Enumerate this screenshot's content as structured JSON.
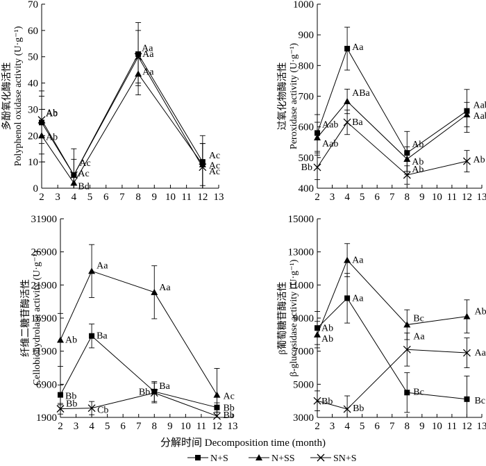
{
  "figure": {
    "x_label": "分解时间 Decomposition time (month)",
    "legend": [
      {
        "name": "N+S",
        "marker": "square"
      },
      {
        "name": "N+SS",
        "marker": "triangle"
      },
      {
        "name": "SN+S",
        "marker": "cross"
      }
    ]
  },
  "chart_data": [
    {
      "type": "line",
      "ylabel_cn": "多酚氧化酶活性",
      "ylabel_en": "Polyphenol oxidase activity (U·g⁻¹)",
      "x": [
        2,
        4,
        8,
        12
      ],
      "xlim": [
        2,
        13
      ],
      "ylim": [
        0,
        70
      ],
      "yticks": [
        0,
        10,
        20,
        30,
        40,
        50,
        60,
        70
      ],
      "series": [
        {
          "name": "N+S",
          "values": [
            25,
            5,
            51,
            10
          ],
          "err": [
            12,
            10,
            12,
            10
          ],
          "labels": [
            "Ab",
            "Ac",
            "Aa",
            "Ac"
          ]
        },
        {
          "name": "N+SS",
          "values": [
            20,
            2,
            43.5,
            9
          ],
          "err": [
            10,
            3,
            8,
            8
          ],
          "labels": [
            "Ab",
            "Bd",
            "Aa",
            "Ac"
          ]
        },
        {
          "name": "SN+S",
          "values": [
            26,
            5,
            50,
            8
          ],
          "err": [
            9,
            6,
            10,
            9
          ],
          "labels": [
            "Ab",
            "Ac",
            "Aa",
            "Ac"
          ]
        }
      ]
    },
    {
      "type": "line",
      "ylabel_cn": "过氧化物酶活性",
      "ylabel_en": "Peroxidase activity (U·g⁻¹)",
      "x": [
        2,
        4,
        8,
        12
      ],
      "xlim": [
        2,
        13
      ],
      "ylim": [
        400,
        1000
      ],
      "yticks": [
        400,
        500,
        600,
        700,
        800,
        900,
        1000
      ],
      "series": [
        {
          "name": "N+S",
          "values": [
            580,
            855,
            515,
            652
          ],
          "err": [
            60,
            70,
            70,
            70
          ],
          "labels": [
            "Aab",
            "Aa",
            "Ab",
            "Aab"
          ]
        },
        {
          "name": "N+SS",
          "values": [
            565,
            683,
            495,
            640
          ],
          "err": [
            50,
            40,
            40,
            40
          ],
          "labels": [
            "Aab",
            "ABa",
            "Ab",
            "Aab"
          ]
        },
        {
          "name": "SN+S",
          "values": [
            468,
            615,
            443,
            488
          ],
          "err": [
            40,
            40,
            30,
            35
          ],
          "labels": [
            "Bb",
            "Ba",
            "Ab",
            "Ab"
          ]
        }
      ]
    },
    {
      "type": "line",
      "ylabel_cn": "纤维二糖苷酶活性",
      "ylabel_en": "Cellobiohydrolase activity (U·g⁻¹)",
      "x": [
        2,
        4,
        8,
        12
      ],
      "xlim": [
        2,
        13
      ],
      "ylim": [
        1900,
        31900
      ],
      "yticks": [
        1900,
        6900,
        11900,
        16900,
        21900,
        26900,
        31900
      ],
      "series": [
        {
          "name": "N+S",
          "values": [
            5300,
            14200,
            5800,
            3400
          ],
          "err": [
            1500,
            1800,
            1500,
            700
          ],
          "labels": [
            "Bb",
            "Ba",
            "Ba",
            "Bb"
          ]
        },
        {
          "name": "N+SS",
          "values": [
            13600,
            24000,
            20800,
            5300
          ],
          "err": [
            4000,
            4000,
            4000,
            4000
          ],
          "labels": [
            "Ab",
            "Aa",
            "Aa",
            "Ac"
          ]
        },
        {
          "name": "SN+S",
          "values": [
            3200,
            3300,
            5600,
            2100
          ],
          "err": [
            800,
            1000,
            1500,
            600
          ],
          "labels": [
            "Bb",
            "Cb",
            "Bb",
            "Bb"
          ]
        }
      ]
    },
    {
      "type": "line",
      "ylabel_cn": "β葡萄糖苷酶活性",
      "ylabel_en": "β-glucosidase activity (U·g⁻¹)",
      "x": [
        2,
        4,
        8,
        12
      ],
      "xlim": [
        2,
        13
      ],
      "ylim": [
        3000,
        15000
      ],
      "yticks": [
        3000,
        5000,
        7000,
        9000,
        11000,
        13000,
        15000
      ],
      "series": [
        {
          "name": "N+S",
          "values": [
            8400,
            10200,
            4500,
            4100
          ],
          "err": [
            1000,
            1500,
            1200,
            1400
          ],
          "labels": [
            "Ab",
            "Aa",
            "Bc",
            "Bc"
          ]
        },
        {
          "name": "N+SS",
          "values": [
            8000,
            12500,
            8600,
            9100
          ],
          "err": [
            800,
            1000,
            900,
            1000
          ],
          "labels": [
            "Ab",
            "Aa",
            "Bc",
            "Ab"
          ]
        },
        {
          "name": "SN+S",
          "values": [
            4000,
            3500,
            7100,
            6900
          ],
          "err": [
            600,
            800,
            1000,
            900
          ],
          "labels": [
            "Bb",
            "Bb",
            "Aa",
            "Aa"
          ]
        }
      ]
    }
  ]
}
